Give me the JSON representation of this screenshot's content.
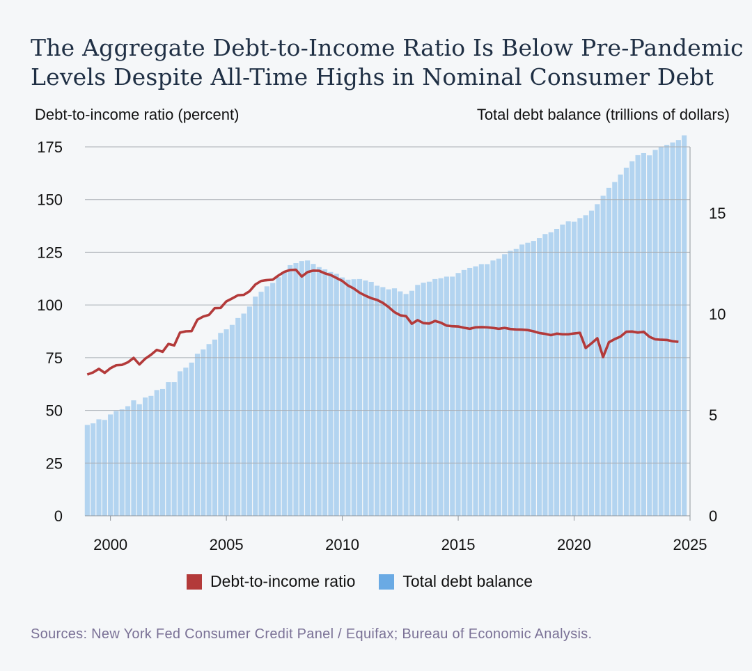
{
  "title_lines": [
    "The Aggregate Debt-to-Income Ratio Is Below Pre-Pandemic",
    "Levels Despite All-Time Highs in Nominal Consumer Debt"
  ],
  "source": "Sources: New York Fed Consumer Credit Panel / Equifax; Bureau of Economic Analysis.",
  "colors": {
    "line": "#b33a3a",
    "bars": "#b3d4f0",
    "grid": "#a9aeb4",
    "legend_bar": "#6aaae4"
  },
  "chart_data": {
    "type": "bar+line",
    "title": "The Aggregate Debt-to-Income Ratio Is Below Pre-Pandemic Levels Despite All-Time Highs in Nominal Consumer Debt",
    "ylabel_left": "Debt-to-income ratio (percent)",
    "ylabel_right": "Total debt balance (trillions of dollars)",
    "xlim": [
      1998.9,
      2025
    ],
    "ylim_left": [
      0,
      175
    ],
    "ylim_right": [
      0,
      18.28
    ],
    "x_ticks": [
      2000,
      2005,
      2010,
      2015,
      2020,
      2025
    ],
    "y_ticks_left": [
      0,
      25,
      50,
      75,
      100,
      125,
      150,
      175
    ],
    "y_ticks_right": [
      0,
      5,
      10,
      15
    ],
    "grid": true,
    "legend_position": "bottom",
    "bar_start": 1999.0,
    "bar_step": 0.25,
    "series": [
      {
        "name": "Debt-to-income ratio",
        "kind": "line",
        "axis": "left",
        "x": [
          1999.0,
          1999.25,
          1999.5,
          1999.75,
          2000.0,
          2000.25,
          2000.5,
          2000.75,
          2001.0,
          2001.25,
          2001.5,
          2001.75,
          2002.0,
          2002.25,
          2002.5,
          2002.75,
          2003.0,
          2003.25,
          2003.5,
          2003.75,
          2004.0,
          2004.25,
          2004.5,
          2004.75,
          2005.0,
          2005.25,
          2005.5,
          2005.75,
          2006.0,
          2006.25,
          2006.5,
          2006.75,
          2007.0,
          2007.25,
          2007.5,
          2007.75,
          2008.0,
          2008.25,
          2008.5,
          2008.75,
          2009.0,
          2009.25,
          2009.5,
          2009.75,
          2010.0,
          2010.25,
          2010.5,
          2010.75,
          2011.0,
          2011.25,
          2011.5,
          2011.75,
          2012.0,
          2012.25,
          2012.5,
          2012.75,
          2013.0,
          2013.25,
          2013.5,
          2013.75,
          2014.0,
          2014.25,
          2014.5,
          2014.75,
          2015.0,
          2015.25,
          2015.5,
          2015.75,
          2016.0,
          2016.25,
          2016.5,
          2016.75,
          2017.0,
          2017.25,
          2017.5,
          2017.75,
          2018.0,
          2018.25,
          2018.5,
          2018.75,
          2019.0,
          2019.25,
          2019.5,
          2019.75,
          2020.0,
          2020.25,
          2020.5,
          2020.75,
          2021.0,
          2021.25,
          2021.5,
          2021.75,
          2022.0,
          2022.25,
          2022.5,
          2022.75,
          2023.0,
          2023.25,
          2023.5,
          2023.75,
          2024.0,
          2024.25,
          2024.5
        ],
        "values": [
          67.0,
          68.0,
          69.7,
          67.8,
          70.0,
          71.4,
          71.6,
          72.8,
          74.9,
          71.8,
          74.5,
          76.4,
          78.7,
          77.8,
          81.5,
          80.8,
          86.9,
          87.5,
          87.6,
          93.0,
          94.5,
          95.3,
          98.5,
          98.6,
          101.7,
          103.1,
          104.6,
          104.8,
          106.5,
          109.7,
          111.4,
          111.8,
          112.0,
          114.0,
          115.7,
          116.6,
          116.7,
          113.5,
          115.6,
          116.3,
          116.2,
          115.0,
          114.2,
          112.8,
          111.4,
          109.2,
          107.8,
          105.8,
          104.4,
          103.2,
          102.4,
          101.0,
          99.0,
          96.6,
          95.1,
          94.7,
          91.1,
          92.8,
          91.4,
          91.2,
          92.4,
          91.6,
          90.2,
          89.9,
          89.8,
          89.2,
          88.7,
          89.4,
          89.5,
          89.4,
          89.1,
          88.7,
          89.1,
          88.6,
          88.4,
          88.3,
          88.1,
          87.5,
          86.7,
          86.3,
          85.7,
          86.4,
          86.1,
          86.1,
          86.5,
          86.8,
          79.6,
          81.8,
          84.2,
          75.3,
          82.3,
          83.8,
          85.0,
          87.3,
          87.4,
          86.9,
          87.3,
          84.9,
          83.7,
          83.5,
          83.4,
          82.8,
          82.5
        ]
      },
      {
        "name": "Total debt balance",
        "kind": "bar",
        "axis": "right",
        "values": [
          4.5,
          4.58,
          4.78,
          4.75,
          5.02,
          5.19,
          5.27,
          5.43,
          5.72,
          5.53,
          5.86,
          5.94,
          6.23,
          6.28,
          6.62,
          6.62,
          7.16,
          7.34,
          7.59,
          8.03,
          8.24,
          8.51,
          8.73,
          9.06,
          9.24,
          9.46,
          9.8,
          10.02,
          10.37,
          10.86,
          11.1,
          11.37,
          11.54,
          11.82,
          12.06,
          12.42,
          12.52,
          12.62,
          12.65,
          12.48,
          12.32,
          12.21,
          12.08,
          11.99,
          11.81,
          11.7,
          11.72,
          11.73,
          11.66,
          11.59,
          11.4,
          11.33,
          11.22,
          11.27,
          11.12,
          10.99,
          11.15,
          11.44,
          11.55,
          11.6,
          11.73,
          11.77,
          11.85,
          11.85,
          12.03,
          12.18,
          12.28,
          12.36,
          12.47,
          12.47,
          12.65,
          12.74,
          12.96,
          13.13,
          13.22,
          13.44,
          13.53,
          13.62,
          13.76,
          13.96,
          14.05,
          14.21,
          14.43,
          14.59,
          14.57,
          14.75,
          14.89,
          15.12,
          15.44,
          15.86,
          16.25,
          16.54,
          16.91,
          17.25,
          17.57,
          17.87,
          17.97,
          17.86,
          18.13,
          18.29,
          18.38,
          18.5,
          18.62,
          18.85
        ]
      }
    ]
  }
}
